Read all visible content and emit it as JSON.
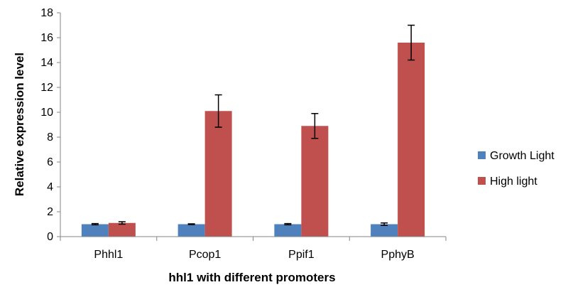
{
  "chart_data": {
    "type": "bar",
    "title": "",
    "xlabel": "hhl1 with different promoters",
    "ylabel": "Relative expression level",
    "categories": [
      "Phhl1",
      "Pcop1",
      "Ppif1",
      "PphyB"
    ],
    "ylim": [
      0,
      18
    ],
    "yticks": [
      0,
      2,
      4,
      6,
      8,
      10,
      12,
      14,
      16,
      18
    ],
    "grid": false,
    "legend_position": "right",
    "series": [
      {
        "name": "Growth Light",
        "color": "#4f81bd",
        "values": [
          1.0,
          1.0,
          1.0,
          1.0
        ],
        "errors": [
          0.05,
          0.03,
          0.05,
          0.1
        ]
      },
      {
        "name": "High light",
        "color": "#c0504d",
        "values": [
          1.1,
          10.1,
          8.9,
          15.6
        ],
        "errors": [
          0.1,
          1.3,
          1.0,
          1.4
        ]
      }
    ]
  }
}
